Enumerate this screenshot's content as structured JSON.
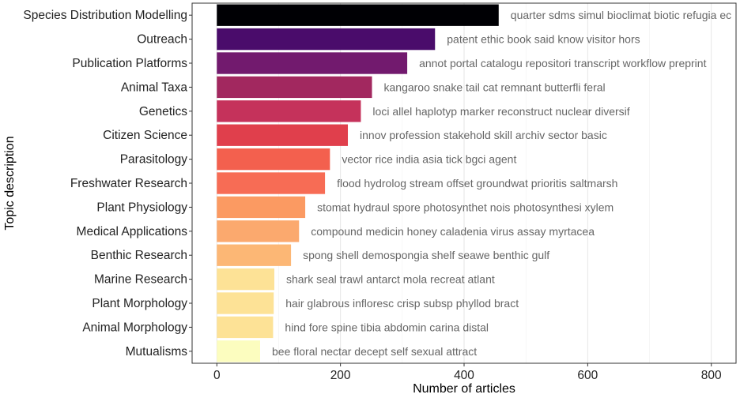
{
  "chart_data": {
    "type": "bar",
    "orientation": "horizontal",
    "xlabel": "Number of articles",
    "ylabel": "Topic description",
    "xlim": [
      -40,
      840
    ],
    "xticks": [
      0,
      200,
      400,
      600,
      800
    ],
    "grid": true,
    "categories": [
      "Species Distribution Modelling",
      "Outreach",
      "Publication Platforms",
      "Animal Taxa",
      "Genetics",
      "Citizen Science",
      "Parasitology",
      "Freshwater Research",
      "Plant Physiology",
      "Medical Applications",
      "Benthic Research",
      "Marine Research",
      "Plant Morphology",
      "Animal Morphology",
      "Mutualisms"
    ],
    "values": [
      456,
      353,
      308,
      251,
      233,
      212,
      183,
      175,
      143,
      133,
      120,
      93,
      92,
      91,
      70
    ],
    "colors": [
      "#000004",
      "#4a0c6b",
      "#721a6e",
      "#a2285f",
      "#c5325b",
      "#e03f4c",
      "#f3604e",
      "#f76c55",
      "#fb9a62",
      "#fba96e",
      "#fcb775",
      "#fde296",
      "#fde296",
      "#fde296",
      "#fcfdbf"
    ],
    "annotations": [
      "quarter sdms simul bioclimat biotic refugia ec",
      "patent ethic book said know visitor hors",
      "annot portal catalogu repositori transcript workflow preprint",
      "kangaroo snake tail cat remnant butterfli feral",
      "loci allel haplotyp marker reconstruct nuclear diversif",
      "innov profession stakehold skill archiv sector basic",
      "vector rice india asia tick bgci agent",
      "flood hydrolog stream offset groundwat prioritis saltmarsh",
      "stomat hydraul spore photosynthet nois photosynthesi xylem",
      "compound medicin honey caladenia virus assay myrtacea",
      "spong shell demospongia shelf seawe benthic gulf",
      "shark seal trawl antarct mola recreat atlant",
      "hair glabrous infloresc crisp subsp phyllod bract",
      "hind fore spine tibia abdomin carina distal",
      "bee floral nectar decept self sexual attract"
    ]
  }
}
